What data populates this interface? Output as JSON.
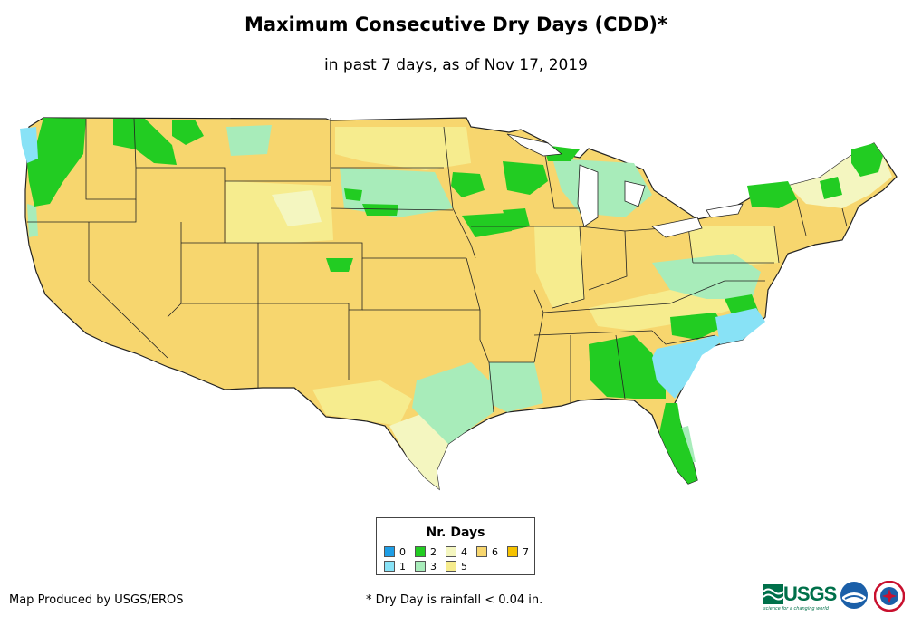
{
  "header": {
    "title": "Maximum Consecutive Dry Days (CDD)*",
    "subtitle": "in past 7 days, as of Nov 17, 2019"
  },
  "legend": {
    "title": "Nr. Days",
    "items": [
      {
        "label": "0",
        "color": "#1e9ee6"
      },
      {
        "label": "1",
        "color": "#88e2f6"
      },
      {
        "label": "2",
        "color": "#22cc22"
      },
      {
        "label": "3",
        "color": "#a8ecba"
      },
      {
        "label": "4",
        "color": "#f4f6c0"
      },
      {
        "label": "5",
        "color": "#f6ec8e"
      },
      {
        "label": "6",
        "color": "#f7d66e"
      },
      {
        "label": "7",
        "color": "#f5c200"
      }
    ]
  },
  "footer": {
    "credit": "Map Produced by USGS/EROS",
    "footnote": "* Dry Day is rainfall < 0.04 in."
  },
  "logos": {
    "usgs": "USGS",
    "usgs_tagline": "science for a changing world",
    "noaa": "noaa-logo",
    "nws": "nws-logo"
  }
}
